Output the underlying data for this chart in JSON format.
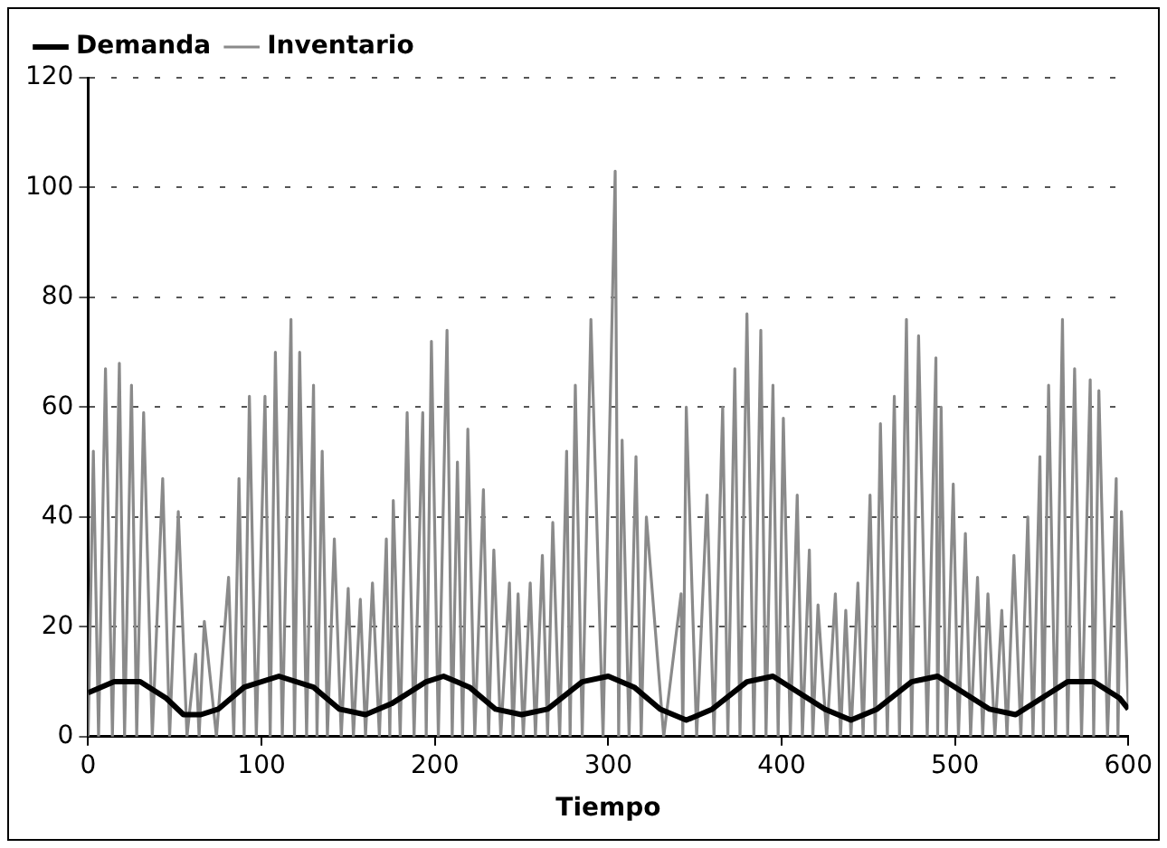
{
  "chart_data": {
    "type": "line",
    "xlabel": "Tiempo",
    "xlim": [
      0,
      600
    ],
    "xticks": [
      0,
      100,
      200,
      300,
      400,
      500,
      600
    ],
    "ylim": [
      0,
      120
    ],
    "yticks": [
      0,
      20,
      40,
      60,
      80,
      100,
      120
    ],
    "grid": "y",
    "legend": "top left",
    "marker": "none",
    "series": [
      {
        "name": "Inventario",
        "color": "#8a8a8a",
        "x": [
          0,
          3,
          6,
          10,
          14,
          18,
          21,
          25,
          28,
          32,
          37,
          43,
          47,
          52,
          57,
          62,
          64,
          67,
          74,
          81,
          84,
          87,
          90,
          93,
          97,
          102,
          105,
          108,
          112,
          117,
          119,
          122,
          126,
          130,
          132,
          135,
          138,
          142,
          146,
          150,
          153,
          157,
          160,
          164,
          168,
          172,
          174,
          176,
          180,
          184,
          188,
          193,
          195,
          198,
          202,
          207,
          210,
          213,
          216,
          219,
          223,
          228,
          231,
          234,
          238,
          243,
          245,
          248,
          251,
          255,
          258,
          262,
          265,
          268,
          272,
          276,
          278,
          281,
          285,
          290,
          297,
          304,
          306,
          308,
          312,
          316,
          319,
          322,
          332,
          342,
          343,
          345,
          351,
          357,
          361,
          366,
          369,
          373,
          376,
          380,
          384,
          388,
          391,
          395,
          398,
          401,
          405,
          409,
          412,
          416,
          418,
          421,
          426,
          431,
          434,
          437,
          440,
          444,
          447,
          451,
          454,
          457,
          461,
          465,
          468,
          472,
          475,
          479,
          484,
          489,
          490,
          492,
          495,
          499,
          502,
          506,
          509,
          513,
          516,
          519,
          523,
          527,
          530,
          534,
          538,
          542,
          545,
          549,
          551,
          554,
          558,
          562,
          565,
          569,
          573,
          578,
          580,
          583,
          588,
          593,
          594,
          596,
          600
        ],
        "values": [
          0,
          52,
          0,
          67,
          0,
          68,
          0,
          64,
          0,
          59,
          0,
          47,
          0,
          41,
          0,
          15,
          0,
          21,
          0,
          29,
          0,
          47,
          0,
          62,
          0,
          62,
          0,
          70,
          0,
          76,
          0,
          70,
          0,
          64,
          0,
          52,
          0,
          36,
          0,
          27,
          0,
          25,
          0,
          28,
          0,
          36,
          0,
          43,
          0,
          59,
          0,
          59,
          0,
          72,
          0,
          74,
          0,
          50,
          0,
          56,
          0,
          45,
          0,
          34,
          0,
          28,
          0,
          26,
          0,
          28,
          0,
          33,
          0,
          39,
          0,
          52,
          0,
          64,
          0,
          76,
          0,
          103,
          0,
          54,
          0,
          51,
          0,
          40,
          0,
          26,
          0,
          60,
          0,
          44,
          0,
          60,
          0,
          67,
          0,
          77,
          0,
          74,
          0,
          64,
          0,
          58,
          0,
          44,
          0,
          34,
          0,
          24,
          0,
          26,
          0,
          23,
          0,
          28,
          0,
          44,
          0,
          57,
          0,
          62,
          0,
          76,
          0,
          73,
          0,
          69,
          0,
          60,
          0,
          46,
          0,
          37,
          0,
          29,
          0,
          26,
          0,
          23,
          0,
          33,
          0,
          40,
          0,
          51,
          0,
          64,
          0,
          76,
          0,
          67,
          0,
          65,
          0,
          63,
          0,
          47,
          0,
          41,
          5
        ]
      },
      {
        "name": "Demanda",
        "color": "#000000",
        "x": [
          0,
          15,
          30,
          45,
          55,
          65,
          75,
          90,
          110,
          130,
          145,
          160,
          175,
          195,
          205,
          220,
          235,
          250,
          265,
          285,
          300,
          315,
          330,
          345,
          360,
          380,
          395,
          410,
          425,
          440,
          455,
          475,
          490,
          505,
          520,
          535,
          550,
          565,
          580,
          595,
          600
        ],
        "values": [
          8,
          10,
          10,
          7,
          4,
          4,
          5,
          9,
          11,
          9,
          5,
          4,
          6,
          10,
          11,
          9,
          5,
          4,
          5,
          10,
          11,
          9,
          5,
          3,
          5,
          10,
          11,
          8,
          5,
          3,
          5,
          10,
          11,
          8,
          5,
          4,
          7,
          10,
          10,
          7,
          5
        ]
      }
    ]
  }
}
